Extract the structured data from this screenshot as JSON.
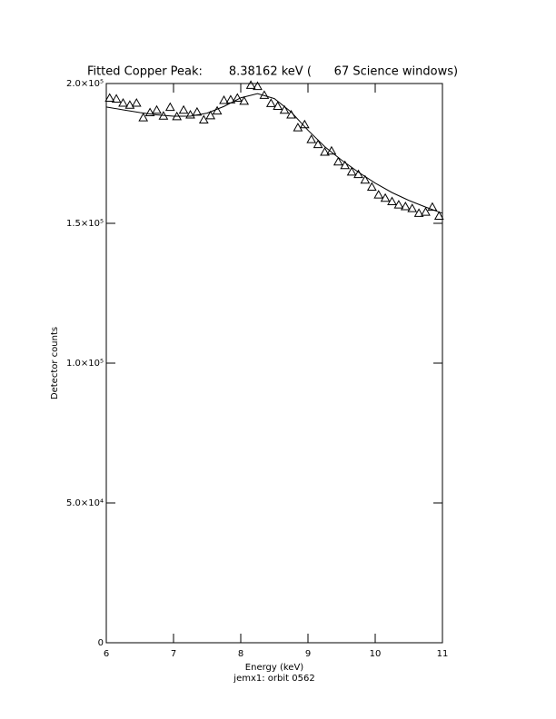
{
  "chart_data": {
    "type": "scatter",
    "title": "Fitted Copper Peak:       8.38162 keV (      67 Science windows)",
    "xlabel": "Energy (keV)",
    "ylabel": "Detector counts",
    "footnote": "jemx1: orbit 0562",
    "xlim": [
      6,
      11
    ],
    "ylim": [
      0,
      200000
    ],
    "xticks": [
      6,
      7,
      8,
      9,
      10,
      11
    ],
    "yticks": [
      0,
      {
        "value": 50000,
        "label": "5.0×10⁴"
      },
      {
        "value": 100000,
        "label": "1.0×10⁵"
      },
      {
        "value": 150000,
        "label": "1.5×10⁵"
      },
      {
        "value": 200000,
        "label": "2.0×10⁵"
      }
    ],
    "series": [
      {
        "style": "markers",
        "marker": "triangle",
        "color": "#000000",
        "x": [
          6.05,
          6.15,
          6.25,
          6.35,
          6.45,
          6.55,
          6.65,
          6.75,
          6.85,
          6.95,
          7.05,
          7.15,
          7.25,
          7.35,
          7.45,
          7.55,
          7.65,
          7.75,
          7.85,
          7.95,
          8.05,
          8.15,
          8.25,
          8.35,
          8.45,
          8.55,
          8.65,
          8.75,
          8.85,
          8.95,
          9.05,
          9.15,
          9.25,
          9.35,
          9.45,
          9.55,
          9.65,
          9.75,
          9.85,
          9.95,
          10.05,
          10.15,
          10.25,
          10.35,
          10.45,
          10.55,
          10.65,
          10.75,
          10.85,
          10.95
        ],
        "values": [
          194800,
          194500,
          193000,
          192300,
          193000,
          187800,
          189600,
          190500,
          188400,
          191500,
          188200,
          190500,
          188800,
          189800,
          187000,
          188500,
          190200,
          194000,
          194200,
          194800,
          193700,
          199400,
          199000,
          195800,
          192900,
          191900,
          190500,
          188800,
          184200,
          185300,
          180000,
          178200,
          175500,
          175900,
          172000,
          170700,
          168400,
          167500,
          165500,
          163000,
          160200,
          159000,
          157800,
          156600,
          156000,
          155300,
          153600,
          154000,
          155800,
          152600
        ]
      },
      {
        "style": "line",
        "color": "#000000",
        "x": [
          6.0,
          6.25,
          6.5,
          6.75,
          7.0,
          7.25,
          7.5,
          7.75,
          8.0,
          8.25,
          8.5,
          8.75,
          9.0,
          9.25,
          9.5,
          9.75,
          10.0,
          10.25,
          10.5,
          10.75,
          11.0
        ],
        "values": [
          191600,
          190600,
          189600,
          188800,
          188300,
          188300,
          189400,
          191800,
          194900,
          196400,
          194600,
          189800,
          183300,
          177400,
          172600,
          168300,
          164400,
          161000,
          158200,
          155800,
          153600
        ]
      }
    ]
  }
}
